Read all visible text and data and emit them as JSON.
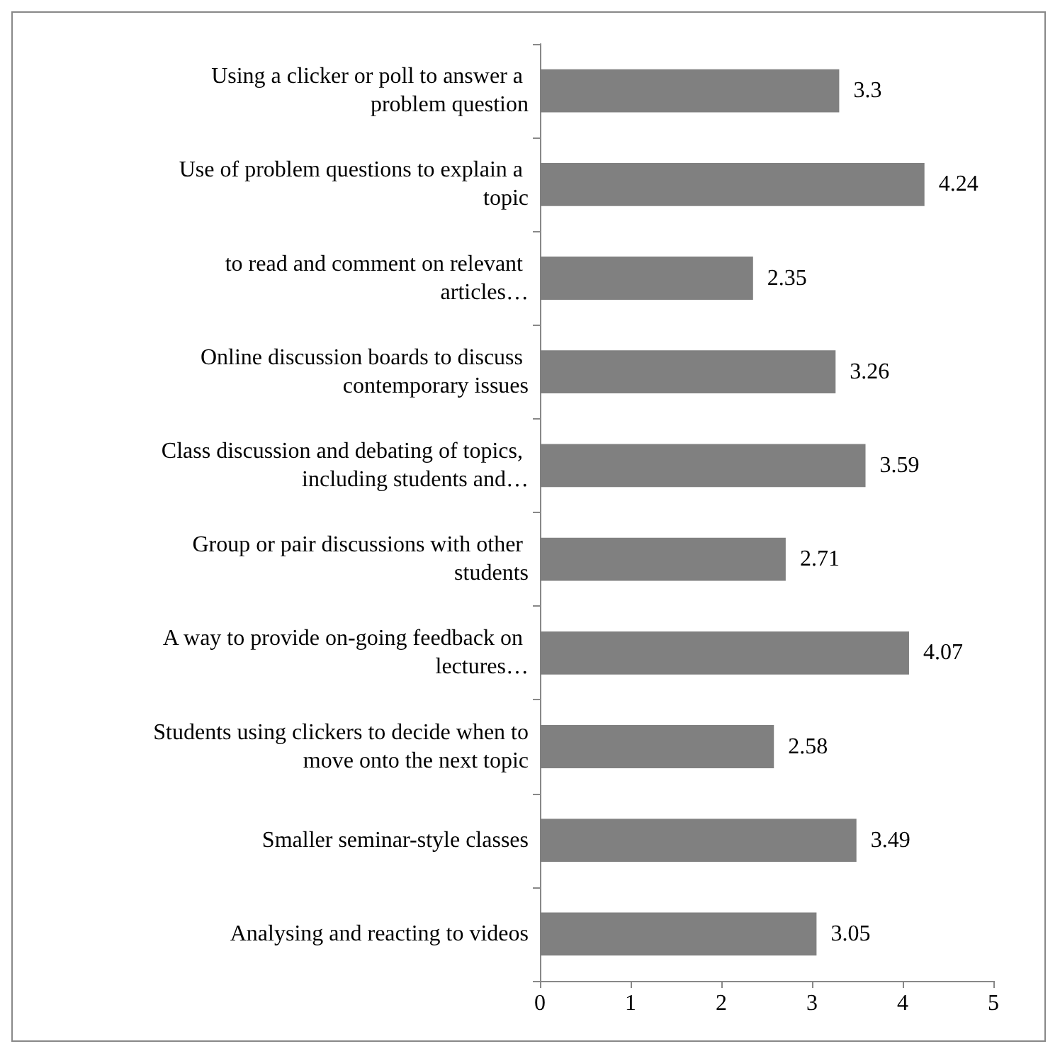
{
  "chart_data": {
    "type": "bar",
    "orientation": "horizontal",
    "categories": [
      "Using a clicker or poll to answer a problem question",
      "Use of problem questions to explain a topic",
      "to read and comment on relevant articles…",
      "Online discussion boards to discuss contemporary issues",
      "Class discussion and debating of topics, including students and…",
      "Group or pair discussions with other students",
      "A way to provide on-going feedback on lectures…",
      "Students using clickers to decide when to move onto the next topic",
      "Smaller seminar-style classes",
      "Analysing and reacting to videos"
    ],
    "values": [
      3.3,
      4.24,
      2.35,
      3.26,
      3.59,
      2.71,
      4.07,
      2.58,
      3.49,
      3.05
    ],
    "color": "#808080",
    "xlim": [
      0,
      5
    ],
    "xticks": [
      0,
      1,
      2,
      3,
      4,
      5
    ],
    "grid": false,
    "data_labels": true
  }
}
